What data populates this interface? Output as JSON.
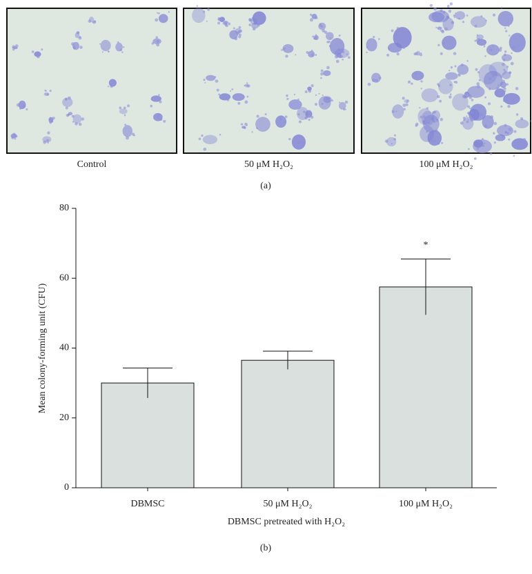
{
  "panel_a": {
    "captions": [
      "Control",
      "50 μM H₂O₂",
      "100 μM H₂O₂"
    ],
    "label": "(a)"
  },
  "chart_data": {
    "type": "bar",
    "label": "(b)",
    "y_label": "Mean colony-forming unit (CFU)",
    "x_label": "DBMSC pretreated with H₂O₂",
    "categories": [
      "DBMSC",
      "50 μM H₂O₂",
      "100 μM H₂O₂"
    ],
    "values": [
      30,
      36.5,
      57.5
    ],
    "errors": [
      4.3,
      2.6,
      8
    ],
    "annotation": "*",
    "color": "#d9e0de",
    "ylim": [
      0,
      80
    ],
    "yticks": [
      0,
      20,
      40,
      60,
      80
    ],
    "grid": false
  }
}
